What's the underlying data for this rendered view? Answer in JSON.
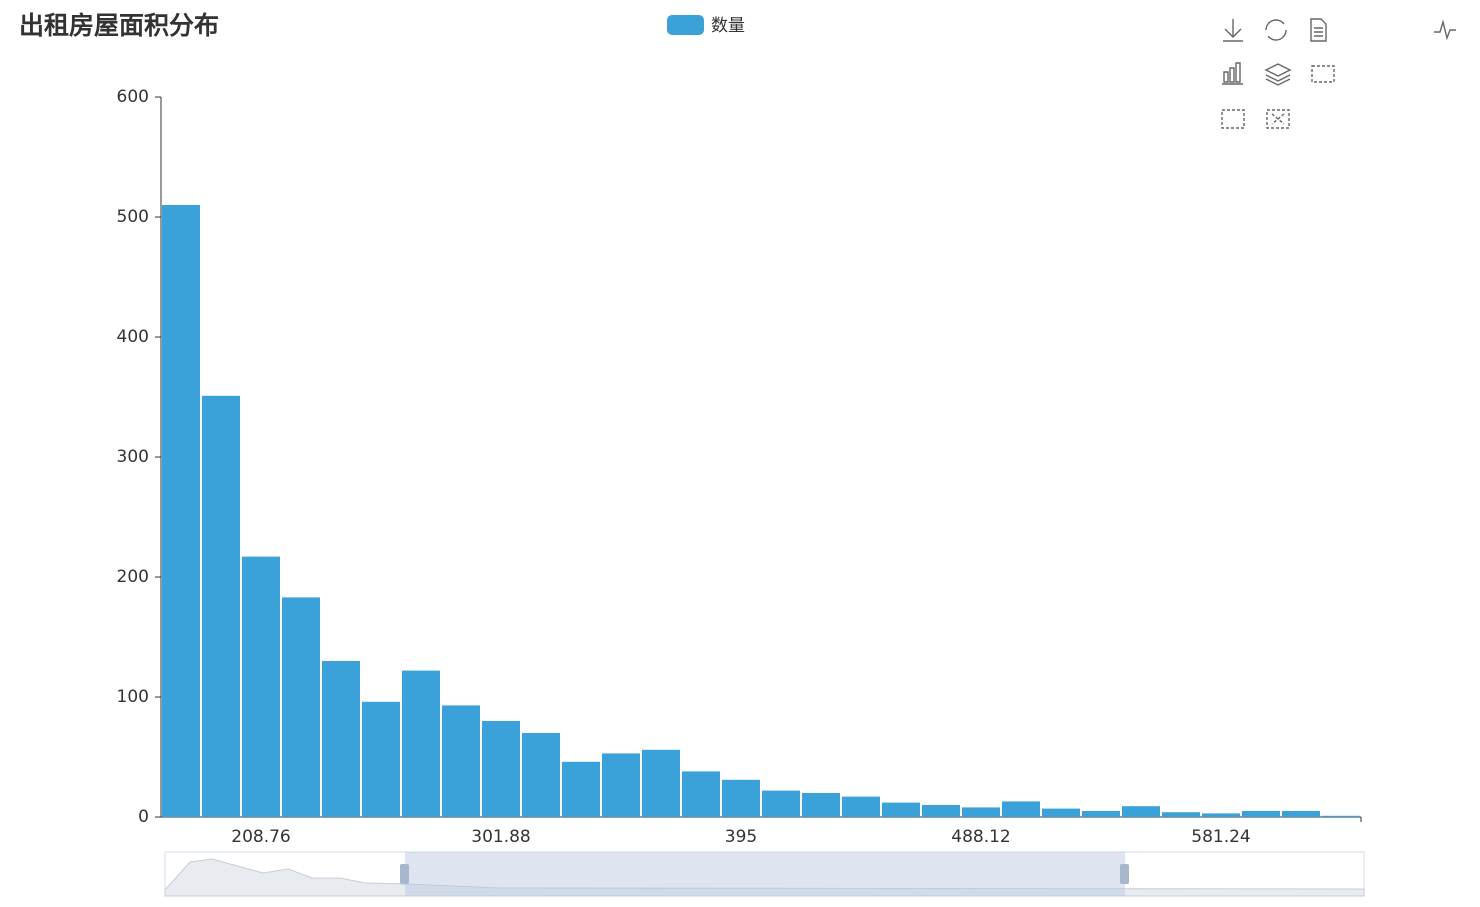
{
  "chart_data": {
    "type": "bar",
    "title": "出租房屋面积分布",
    "categories": [
      null,
      null,
      "208.76",
      null,
      null,
      null,
      null,
      null,
      "301.88",
      null,
      null,
      null,
      null,
      null,
      "395",
      null,
      null,
      null,
      null,
      null,
      "488.12",
      null,
      null,
      null,
      null,
      null,
      "581.24",
      null,
      null,
      null
    ],
    "series": [
      {
        "name": "数量",
        "color": "#3aa2d9",
        "values": [
          510,
          351,
          217,
          183,
          130,
          96,
          122,
          93,
          80,
          70,
          46,
          53,
          56,
          38,
          31,
          22,
          20,
          17,
          12,
          10,
          8,
          13,
          7,
          5,
          9,
          4,
          3,
          5,
          5,
          1
        ]
      }
    ],
    "ylim": [
      0,
      600
    ],
    "yticks": [
      0,
      100,
      200,
      300,
      400,
      500,
      600
    ],
    "grid": false
  }
}
